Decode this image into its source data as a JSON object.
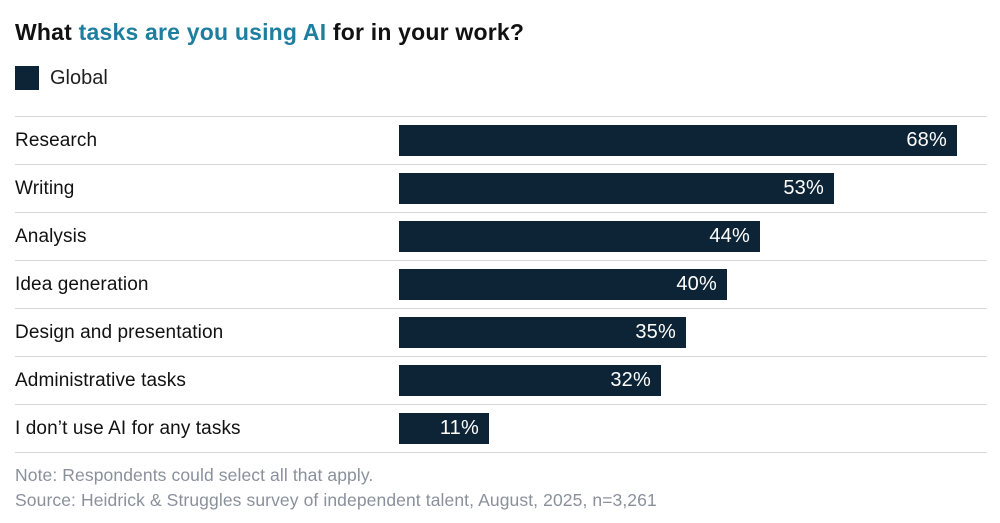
{
  "colors": {
    "bar": "#0c2435",
    "accent": "#1d7e9e",
    "divider": "#d8d8d8",
    "footer_text": "#8a909b",
    "value_text": "#ffffff"
  },
  "header": {
    "title_prefix": "What ",
    "title_highlight": "tasks are you using AI",
    "title_suffix": " for in your work?"
  },
  "legend": {
    "label": "Global",
    "swatch_color": "#0c2435"
  },
  "chart_data": {
    "type": "bar",
    "orientation": "horizontal",
    "title": "What tasks are you using AI for in your work?",
    "legend_entries": [
      "Global"
    ],
    "legend_position": "top-left",
    "grid": false,
    "xlim": [
      0,
      100
    ],
    "value_unit": "%",
    "categories": [
      "Research",
      "Writing",
      "Analysis",
      "Idea generation",
      "Design and presentation",
      "Administrative tasks",
      "I don’t use AI for any tasks"
    ],
    "values": [
      68,
      53,
      44,
      40,
      35,
      32,
      11
    ],
    "value_labels": [
      "68%",
      "53%",
      "44%",
      "40%",
      "35%",
      "32%",
      "11%"
    ]
  },
  "footer": {
    "note": "Note: Respondents could select all that apply.",
    "source": "Source: Heidrick & Struggles survey of independent talent, August, 2025, n=3,261"
  }
}
